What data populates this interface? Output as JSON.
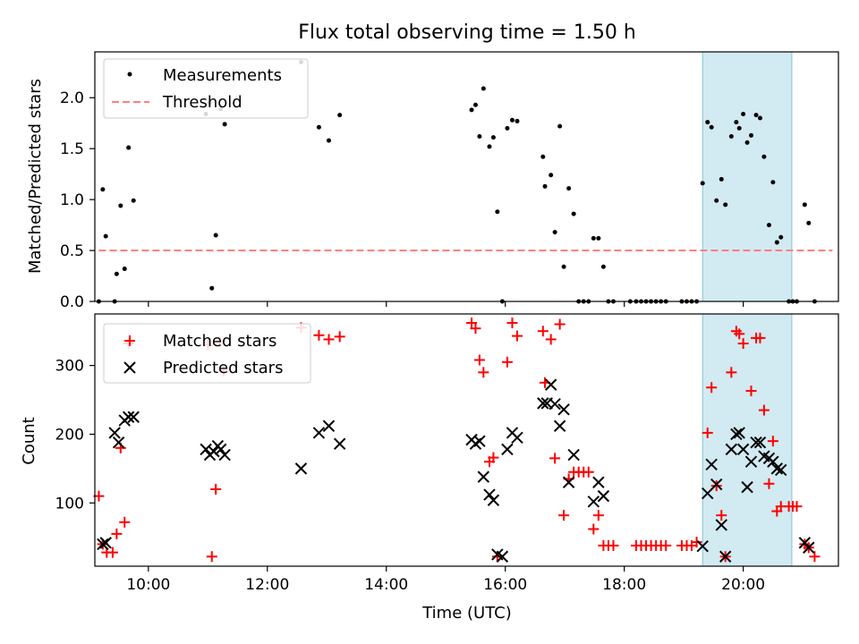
{
  "chart_data": [
    {
      "type": "scatter",
      "title": "Flux total observing time = 1.50 h",
      "ylabel": "Matched/Predicted stars",
      "xlabel": "",
      "xlim": [
        "09:06",
        "21:36"
      ],
      "ylim": [
        0,
        2.45
      ],
      "yticks": [
        "0.0",
        "0.5",
        "1.0",
        "1.5",
        "2.0"
      ],
      "legend": "top-left",
      "grid": false,
      "highlight_span": [
        "19:19",
        "20:49"
      ],
      "threshold": {
        "name": "Threshold",
        "value": 0.5,
        "from": "09:10",
        "to": "21:30",
        "color": "#ff7f7f"
      },
      "series": [
        {
          "name": "Measurements",
          "color": "#000000",
          "points": [
            [
              "09:10",
              0.0
            ],
            [
              "09:14",
              1.1
            ],
            [
              "09:17",
              0.64
            ],
            [
              "09:26",
              0.0
            ],
            [
              "09:28",
              0.27
            ],
            [
              "09:32",
              0.94
            ],
            [
              "09:36",
              0.32
            ],
            [
              "09:40",
              1.51
            ],
            [
              "09:45",
              0.99
            ],
            [
              "10:58",
              1.84
            ],
            [
              "11:02",
              1.95
            ],
            [
              "11:04",
              0.13
            ],
            [
              "11:08",
              0.65
            ],
            [
              "11:13",
              1.89
            ],
            [
              "11:17",
              1.74
            ],
            [
              "12:34",
              2.35
            ],
            [
              "12:52",
              1.71
            ],
            [
              "13:02",
              1.58
            ],
            [
              "13:13",
              1.83
            ],
            [
              "15:26",
              1.88
            ],
            [
              "15:30",
              1.93
            ],
            [
              "15:34",
              1.62
            ],
            [
              "15:38",
              2.09
            ],
            [
              "15:44",
              1.52
            ],
            [
              "15:48",
              1.61
            ],
            [
              "15:52",
              0.88
            ],
            [
              "15:57",
              0.0
            ],
            [
              "16:02",
              1.7
            ],
            [
              "16:07",
              1.78
            ],
            [
              "16:12",
              1.77
            ],
            [
              "16:38",
              1.42
            ],
            [
              "16:40",
              1.13
            ],
            [
              "16:46",
              1.24
            ],
            [
              "16:50",
              0.68
            ],
            [
              "16:55",
              1.72
            ],
            [
              "16:59",
              0.34
            ],
            [
              "17:04",
              1.11
            ],
            [
              "17:09",
              0.86
            ],
            [
              "17:14",
              0.0
            ],
            [
              "17:19",
              0.0
            ],
            [
              "17:24",
              0.0
            ],
            [
              "17:29",
              0.62
            ],
            [
              "17:34",
              0.62
            ],
            [
              "17:39",
              0.34
            ],
            [
              "17:44",
              0.0
            ],
            [
              "17:49",
              0.0
            ],
            [
              "18:06",
              0.0
            ],
            [
              "18:12",
              0.0
            ],
            [
              "18:17",
              0.0
            ],
            [
              "18:22",
              0.0
            ],
            [
              "18:27",
              0.0
            ],
            [
              "18:32",
              0.0
            ],
            [
              "18:37",
              0.0
            ],
            [
              "18:42",
              0.0
            ],
            [
              "18:58",
              0.0
            ],
            [
              "19:03",
              0.0
            ],
            [
              "19:08",
              0.0
            ],
            [
              "19:13",
              0.0
            ],
            [
              "19:19",
              1.16
            ],
            [
              "19:24",
              1.76
            ],
            [
              "19:28",
              1.71
            ],
            [
              "19:33",
              0.99
            ],
            [
              "19:38",
              1.2
            ],
            [
              "19:42",
              0.95
            ],
            [
              "19:48",
              1.62
            ],
            [
              "19:53",
              1.76
            ],
            [
              "19:56",
              1.7
            ],
            [
              "20:00",
              1.84
            ],
            [
              "20:04",
              1.56
            ],
            [
              "20:08",
              1.63
            ],
            [
              "20:13",
              1.83
            ],
            [
              "20:17",
              1.8
            ],
            [
              "20:21",
              1.42
            ],
            [
              "20:26",
              0.75
            ],
            [
              "20:30",
              1.17
            ],
            [
              "20:34",
              0.58
            ],
            [
              "20:38",
              0.63
            ],
            [
              "20:46",
              0.0
            ],
            [
              "20:50",
              0.0
            ],
            [
              "20:54",
              0.0
            ],
            [
              "21:02",
              0.95
            ],
            [
              "21:06",
              0.77
            ],
            [
              "21:12",
              0.0
            ]
          ]
        }
      ]
    },
    {
      "type": "scatter",
      "title": "",
      "ylabel": "Count",
      "xlabel": "Time (UTC)",
      "xlim": [
        "09:06",
        "21:36"
      ],
      "ylim": [
        8,
        375
      ],
      "yticks": [
        "100",
        "200",
        "300"
      ],
      "xticks": [
        "10:00",
        "12:00",
        "14:00",
        "16:00",
        "18:00",
        "20:00"
      ],
      "legend": "top-left",
      "grid": false,
      "highlight_span": [
        "19:19",
        "20:49"
      ],
      "series": [
        {
          "name": "Matched stars",
          "marker": "plus",
          "color": "#ff0000",
          "points": [
            [
              "09:10",
              110
            ],
            [
              "09:14",
              40
            ],
            [
              "09:18",
              28
            ],
            [
              "09:24",
              28
            ],
            [
              "09:28",
              55
            ],
            [
              "09:32",
              180
            ],
            [
              "09:36",
              72
            ],
            [
              "09:40",
              332
            ],
            [
              "11:00",
              330
            ],
            [
              "11:04",
              22
            ],
            [
              "11:08",
              120
            ],
            [
              "11:16",
              292
            ],
            [
              "11:12",
              335
            ],
            [
              "12:34",
              355
            ],
            [
              "12:52",
              344
            ],
            [
              "13:02",
              338
            ],
            [
              "13:13",
              342
            ],
            [
              "15:26",
              362
            ],
            [
              "15:30",
              354
            ],
            [
              "15:34",
              308
            ],
            [
              "15:38",
              290
            ],
            [
              "15:44",
              160
            ],
            [
              "15:48",
              166
            ],
            [
              "15:52",
              22
            ],
            [
              "16:02",
              305
            ],
            [
              "16:07",
              362
            ],
            [
              "16:12",
              343
            ],
            [
              "16:38",
              350
            ],
            [
              "16:40",
              275
            ],
            [
              "16:46",
              338
            ],
            [
              "16:50",
              165
            ],
            [
              "16:55",
              360
            ],
            [
              "16:59",
              82
            ],
            [
              "17:04",
              135
            ],
            [
              "17:09",
              145
            ],
            [
              "17:14",
              145
            ],
            [
              "17:19",
              145
            ],
            [
              "17:24",
              145
            ],
            [
              "17:29",
              62
            ],
            [
              "17:34",
              82
            ],
            [
              "17:39",
              38
            ],
            [
              "17:44",
              38
            ],
            [
              "17:49",
              38
            ],
            [
              "18:12",
              38
            ],
            [
              "18:17",
              38
            ],
            [
              "18:22",
              38
            ],
            [
              "18:27",
              38
            ],
            [
              "18:32",
              38
            ],
            [
              "18:37",
              38
            ],
            [
              "18:42",
              38
            ],
            [
              "18:58",
              38
            ],
            [
              "19:03",
              38
            ],
            [
              "19:08",
              38
            ],
            [
              "19:13",
              43
            ],
            [
              "19:24",
              202
            ],
            [
              "19:28",
              268
            ],
            [
              "19:33",
              125
            ],
            [
              "19:38",
              82
            ],
            [
              "19:42",
              22
            ],
            [
              "19:48",
              290
            ],
            [
              "19:53",
              350
            ],
            [
              "19:56",
              346
            ],
            [
              "20:00",
              332
            ],
            [
              "20:08",
              263
            ],
            [
              "20:13",
              340
            ],
            [
              "20:17",
              340
            ],
            [
              "20:21",
              235
            ],
            [
              "20:26",
              128
            ],
            [
              "20:30",
              190
            ],
            [
              "20:34",
              88
            ],
            [
              "20:38",
              95
            ],
            [
              "20:46",
              95
            ],
            [
              "20:50",
              95
            ],
            [
              "20:54",
              95
            ],
            [
              "21:02",
              40
            ],
            [
              "21:06",
              35
            ],
            [
              "21:12",
              22
            ]
          ]
        },
        {
          "name": "Predicted stars",
          "marker": "x",
          "color": "#000000",
          "points": [
            [
              "09:14",
              40
            ],
            [
              "09:17",
              42
            ],
            [
              "09:26",
              202
            ],
            [
              "09:30",
              188
            ],
            [
              "09:36",
              220
            ],
            [
              "09:40",
              225
            ],
            [
              "09:45",
              225
            ],
            [
              "10:58",
              178
            ],
            [
              "11:02",
              170
            ],
            [
              "11:06",
              175
            ],
            [
              "11:10",
              183
            ],
            [
              "11:13",
              178
            ],
            [
              "11:17",
              170
            ],
            [
              "12:34",
              150
            ],
            [
              "12:52",
              202
            ],
            [
              "13:02",
              212
            ],
            [
              "13:13",
              186
            ],
            [
              "15:26",
              192
            ],
            [
              "15:30",
              186
            ],
            [
              "15:34",
              190
            ],
            [
              "15:38",
              138
            ],
            [
              "15:44",
              112
            ],
            [
              "15:48",
              104
            ],
            [
              "15:52",
              25
            ],
            [
              "15:57",
              22
            ],
            [
              "16:02",
              178
            ],
            [
              "16:07",
              202
            ],
            [
              "16:12",
              195
            ],
            [
              "16:38",
              245
            ],
            [
              "16:42",
              245
            ],
            [
              "16:46",
              272
            ],
            [
              "16:50",
              244
            ],
            [
              "16:55",
              212
            ],
            [
              "16:59",
              236
            ],
            [
              "17:04",
              130
            ],
            [
              "17:09",
              170
            ],
            [
              "17:29",
              102
            ],
            [
              "17:34",
              130
            ],
            [
              "17:39",
              110
            ],
            [
              "19:19",
              37
            ],
            [
              "19:24",
              114
            ],
            [
              "19:28",
              156
            ],
            [
              "19:33",
              127
            ],
            [
              "19:38",
              68
            ],
            [
              "19:42",
              22
            ],
            [
              "19:48",
              178
            ],
            [
              "19:53",
              200
            ],
            [
              "19:56",
              202
            ],
            [
              "20:00",
              178
            ],
            [
              "20:04",
              123
            ],
            [
              "20:08",
              160
            ],
            [
              "20:13",
              188
            ],
            [
              "20:17",
              188
            ],
            [
              "20:21",
              168
            ],
            [
              "20:26",
              165
            ],
            [
              "20:30",
              160
            ],
            [
              "20:34",
              150
            ],
            [
              "20:38",
              148
            ],
            [
              "21:02",
              42
            ],
            [
              "21:06",
              35
            ]
          ]
        }
      ]
    }
  ]
}
